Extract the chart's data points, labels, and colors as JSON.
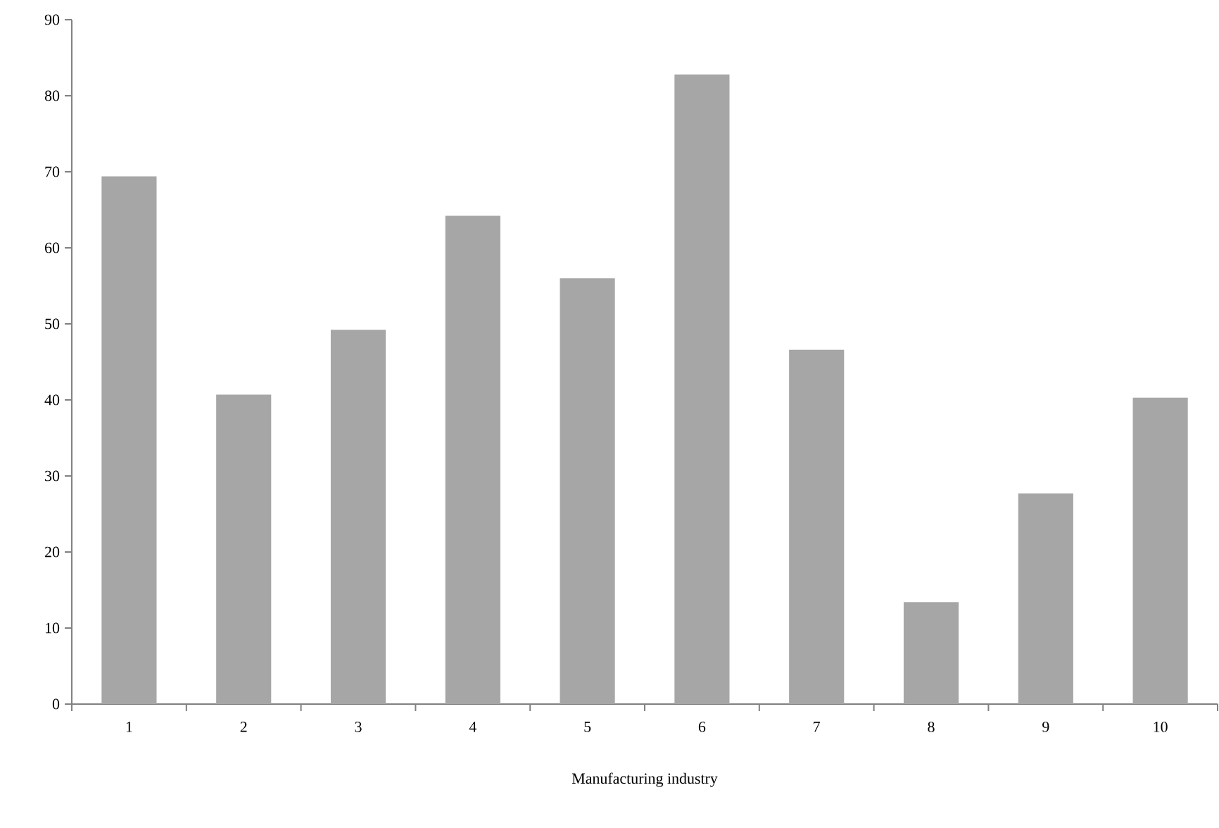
{
  "chart_data": {
    "type": "bar",
    "xlabel": "Manufacturing industry",
    "categories": [
      "1",
      "2",
      "3",
      "4",
      "5",
      "6",
      "7",
      "8",
      "9",
      "10"
    ],
    "values": [
      69.4,
      40.7,
      49.2,
      64.2,
      56.0,
      82.8,
      46.6,
      13.4,
      27.7,
      40.3
    ],
    "color": "#a6a6a6",
    "ylim": [
      0,
      90
    ],
    "yticks": [
      0,
      10,
      20,
      30,
      40,
      50,
      60,
      70,
      80,
      90
    ],
    "grid": false
  }
}
